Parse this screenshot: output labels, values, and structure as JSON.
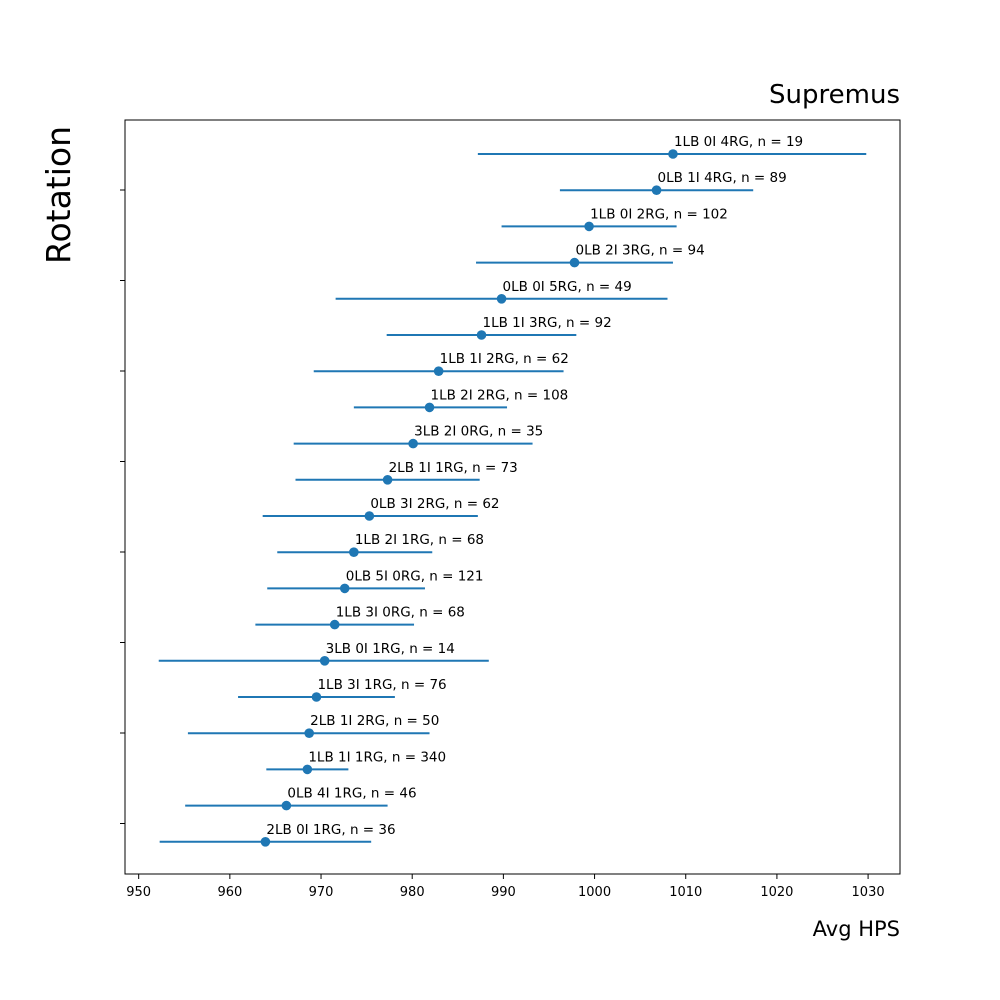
{
  "chart_data": {
    "type": "errorbar",
    "title": "Supremus",
    "xlabel": "Avg HPS",
    "ylabel": "Rotation",
    "xlim": [
      948.5,
      1033.5
    ],
    "xticks": [
      950,
      960,
      970,
      980,
      990,
      1000,
      1010,
      1020,
      1030
    ],
    "color": "#1f77b4",
    "grid": false,
    "series": [
      {
        "label": "1LB 0I 4RG, n = 19",
        "mean": 1008.6,
        "low": 987.2,
        "high": 1029.8
      },
      {
        "label": "0LB 1I 4RG, n = 89",
        "mean": 1006.8,
        "low": 996.2,
        "high": 1017.4
      },
      {
        "label": "1LB 0I 2RG, n = 102",
        "mean": 999.4,
        "low": 989.8,
        "high": 1009.0
      },
      {
        "label": "0LB 2I 3RG, n = 94",
        "mean": 997.8,
        "low": 987.0,
        "high": 1008.6
      },
      {
        "label": "0LB 0I 5RG, n = 49",
        "mean": 989.8,
        "low": 971.6,
        "high": 1008.0
      },
      {
        "label": "1LB 1I 3RG, n = 92",
        "mean": 987.6,
        "low": 977.2,
        "high": 998.0
      },
      {
        "label": "1LB 1I 2RG, n = 62",
        "mean": 982.9,
        "low": 969.2,
        "high": 996.6
      },
      {
        "label": "1LB 2I 2RG, n = 108",
        "mean": 981.9,
        "low": 973.6,
        "high": 990.4
      },
      {
        "label": "3LB 2I 0RG, n = 35",
        "mean": 980.1,
        "low": 967.0,
        "high": 993.2
      },
      {
        "label": "2LB 1I 1RG, n = 73",
        "mean": 977.3,
        "low": 967.2,
        "high": 987.4
      },
      {
        "label": "0LB 3I 2RG, n = 62",
        "mean": 975.3,
        "low": 963.6,
        "high": 987.2
      },
      {
        "label": "1LB 2I 1RG, n = 68",
        "mean": 973.6,
        "low": 965.2,
        "high": 982.2
      },
      {
        "label": "0LB 5I 0RG, n = 121",
        "mean": 972.6,
        "low": 964.1,
        "high": 981.4
      },
      {
        "label": "1LB 3I 0RG, n = 68",
        "mean": 971.5,
        "low": 962.8,
        "high": 980.2
      },
      {
        "label": "3LB 0I 1RG, n = 14",
        "mean": 970.4,
        "low": 952.2,
        "high": 988.4
      },
      {
        "label": "1LB 3I 1RG, n = 76",
        "mean": 969.5,
        "low": 960.9,
        "high": 978.1
      },
      {
        "label": "2LB 1I 2RG, n = 50",
        "mean": 968.7,
        "low": 955.4,
        "high": 981.9
      },
      {
        "label": "1LB 1I 1RG, n = 340",
        "mean": 968.5,
        "low": 964.0,
        "high": 973.0
      },
      {
        "label": "0LB 4I 1RG, n = 46",
        "mean": 966.2,
        "low": 955.1,
        "high": 977.3
      },
      {
        "label": "2LB 0I 1RG, n = 36",
        "mean": 963.9,
        "low": 952.3,
        "high": 975.5
      }
    ]
  }
}
